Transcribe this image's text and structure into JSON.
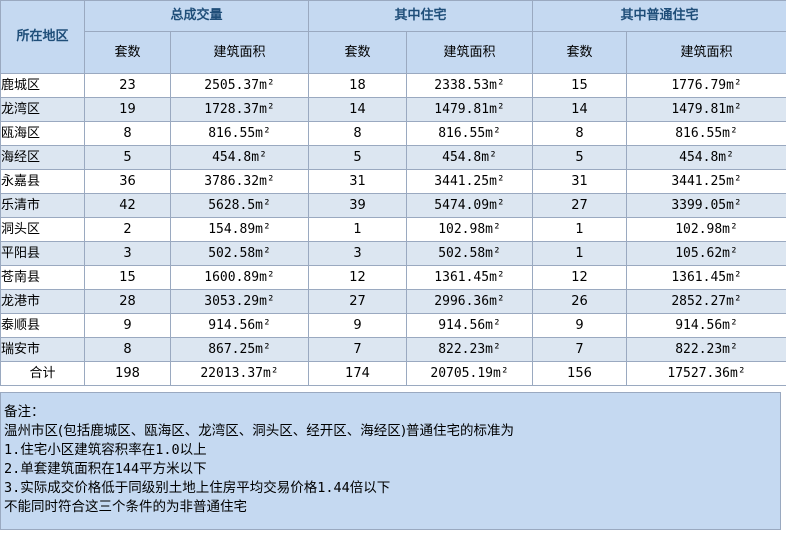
{
  "headers": {
    "region": "所在地区",
    "group_total": "总成交量",
    "group_residential": "其中住宅",
    "group_ordinary": "其中普通住宅",
    "units": "套数",
    "area": "建筑面积"
  },
  "rows": [
    {
      "region": "鹿城区",
      "total_units": "23",
      "total_area": "2505.37m²",
      "res_units": "18",
      "res_area": "2338.53m²",
      "ord_units": "15",
      "ord_area": "1776.79m²"
    },
    {
      "region": "龙湾区",
      "total_units": "19",
      "total_area": "1728.37m²",
      "res_units": "14",
      "res_area": "1479.81m²",
      "ord_units": "14",
      "ord_area": "1479.81m²"
    },
    {
      "region": "瓯海区",
      "total_units": "8",
      "total_area": "816.55m²",
      "res_units": "8",
      "res_area": "816.55m²",
      "ord_units": "8",
      "ord_area": "816.55m²"
    },
    {
      "region": "海经区",
      "total_units": "5",
      "total_area": "454.8m²",
      "res_units": "5",
      "res_area": "454.8m²",
      "ord_units": "5",
      "ord_area": "454.8m²"
    },
    {
      "region": "永嘉县",
      "total_units": "36",
      "total_area": "3786.32m²",
      "res_units": "31",
      "res_area": "3441.25m²",
      "ord_units": "31",
      "ord_area": "3441.25m²"
    },
    {
      "region": "乐清市",
      "total_units": "42",
      "total_area": "5628.5m²",
      "res_units": "39",
      "res_area": "5474.09m²",
      "ord_units": "27",
      "ord_area": "3399.05m²"
    },
    {
      "region": "洞头区",
      "total_units": "2",
      "total_area": "154.89m²",
      "res_units": "1",
      "res_area": "102.98m²",
      "ord_units": "1",
      "ord_area": "102.98m²"
    },
    {
      "region": "平阳县",
      "total_units": "3",
      "total_area": "502.58m²",
      "res_units": "3",
      "res_area": "502.58m²",
      "ord_units": "1",
      "ord_area": "105.62m²"
    },
    {
      "region": "苍南县",
      "total_units": "15",
      "total_area": "1600.89m²",
      "res_units": "12",
      "res_area": "1361.45m²",
      "ord_units": "12",
      "ord_area": "1361.45m²"
    },
    {
      "region": "龙港市",
      "total_units": "28",
      "total_area": "3053.29m²",
      "res_units": "27",
      "res_area": "2996.36m²",
      "ord_units": "26",
      "ord_area": "2852.27m²"
    },
    {
      "region": "泰顺县",
      "total_units": "9",
      "total_area": "914.56m²",
      "res_units": "9",
      "res_area": "914.56m²",
      "ord_units": "9",
      "ord_area": "914.56m²"
    },
    {
      "region": "瑞安市",
      "total_units": "8",
      "total_area": "867.25m²",
      "res_units": "7",
      "res_area": "822.23m²",
      "ord_units": "7",
      "ord_area": "822.23m²"
    }
  ],
  "total": {
    "label": "合计",
    "total_units": "198",
    "total_area": "22013.37m²",
    "res_units": "174",
    "res_area": "20705.19m²",
    "ord_units": "156",
    "ord_area": "17527.36m²"
  },
  "notes": {
    "title": "备注：",
    "line1": "温州市区(包括鹿城区、瓯海区、龙湾区、洞头区、经开区、海经区)普通住宅的标准为",
    "line2": "1.住宅小区建筑容积率在1.0以上",
    "line3": "2.单套建筑面积在144平方米以下",
    "line4": "3.实际成交价格低于同级别土地上住房平均交易价格1.44倍以下",
    "line5": "不能同时符合这三个条件的为非普通住宅"
  },
  "colors": {
    "header_bg": "#c5d9f1",
    "header_text": "#1f4e79",
    "row_alt_bg": "#dce6f1",
    "border": "#9aa9c0"
  }
}
